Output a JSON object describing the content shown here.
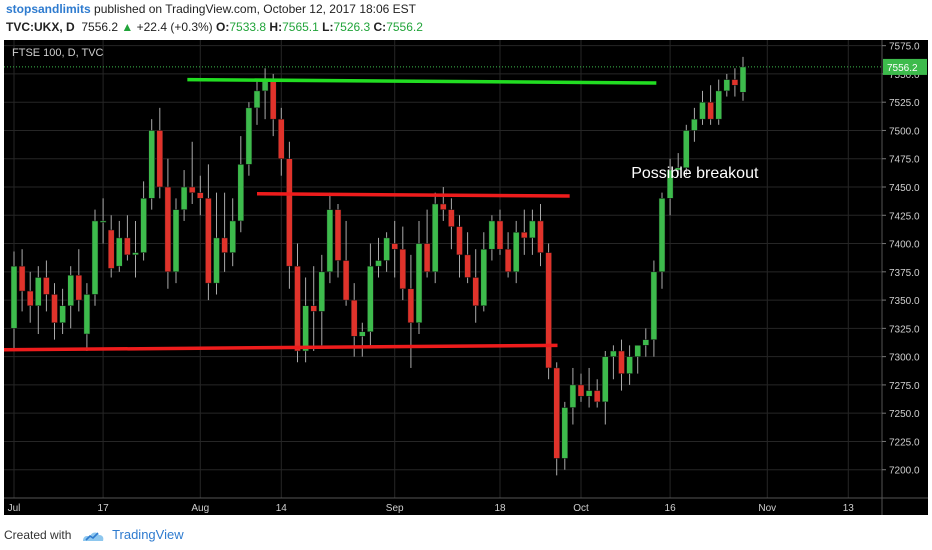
{
  "header": {
    "author": "stopsandlimits",
    "published_text": "published on TradingView.com, October 12, 2017 18:06 EST",
    "symbol": "TVC:UKX, D",
    "last": "7556.2",
    "change": "+22.4 (+0.3%)",
    "o_label": "O:",
    "o_value": "7533.8",
    "h_label": "H:",
    "h_value": "7565.1",
    "l_label": "L:",
    "l_value": "7526.3",
    "c_label": "C:",
    "c_value": "7556.2"
  },
  "chart_data": {
    "type": "candlestick",
    "title": "FTSE 100, D, TVC",
    "ylim": [
      7175,
      7580
    ],
    "y_ticks": [
      "7200.0",
      "7225.0",
      "7250.0",
      "7275.0",
      "7300.0",
      "7325.0",
      "7350.0",
      "7375.0",
      "7400.0",
      "7425.0",
      "7450.0",
      "7475.0",
      "7500.0",
      "7525.0",
      "7550.0",
      "7575.0"
    ],
    "x_ticks": [
      {
        "label": "Jul",
        "i": 0
      },
      {
        "label": "17",
        "i": 11
      },
      {
        "label": "Aug",
        "i": 23
      },
      {
        "label": "14",
        "i": 33
      },
      {
        "label": "Sep",
        "i": 47
      },
      {
        "label": "18",
        "i": 60
      },
      {
        "label": "Oct",
        "i": 70
      },
      {
        "label": "16",
        "i": 81
      },
      {
        "label": "Nov",
        "i": 93
      },
      {
        "label": "13",
        "i": 103
      }
    ],
    "last_price": "7556.2",
    "annotation": "Possible breakout",
    "candles": [
      {
        "o": 7325,
        "h": 7393,
        "l": 7305,
        "c": 7380
      },
      {
        "o": 7380,
        "h": 7395,
        "l": 7340,
        "c": 7358
      },
      {
        "o": 7358,
        "h": 7375,
        "l": 7330,
        "c": 7345
      },
      {
        "o": 7345,
        "h": 7380,
        "l": 7320,
        "c": 7370
      },
      {
        "o": 7370,
        "h": 7385,
        "l": 7340,
        "c": 7355
      },
      {
        "o": 7355,
        "h": 7365,
        "l": 7315,
        "c": 7330
      },
      {
        "o": 7330,
        "h": 7360,
        "l": 7320,
        "c": 7345
      },
      {
        "o": 7345,
        "h": 7380,
        "l": 7325,
        "c": 7372
      },
      {
        "o": 7372,
        "h": 7395,
        "l": 7340,
        "c": 7350
      },
      {
        "o": 7320,
        "h": 7365,
        "l": 7305,
        "c": 7355
      },
      {
        "o": 7355,
        "h": 7430,
        "l": 7345,
        "c": 7420
      },
      {
        "o": 7420,
        "h": 7440,
        "l": 7400,
        "c": 7420
      },
      {
        "o": 7412,
        "h": 7425,
        "l": 7370,
        "c": 7378
      },
      {
        "o": 7380,
        "h": 7420,
        "l": 7375,
        "c": 7405
      },
      {
        "o": 7405,
        "h": 7425,
        "l": 7385,
        "c": 7390
      },
      {
        "o": 7390,
        "h": 7420,
        "l": 7370,
        "c": 7392
      },
      {
        "o": 7392,
        "h": 7455,
        "l": 7385,
        "c": 7440
      },
      {
        "o": 7440,
        "h": 7510,
        "l": 7430,
        "c": 7500
      },
      {
        "o": 7500,
        "h": 7520,
        "l": 7440,
        "c": 7450
      },
      {
        "o": 7450,
        "h": 7475,
        "l": 7360,
        "c": 7375
      },
      {
        "o": 7375,
        "h": 7440,
        "l": 7365,
        "c": 7430
      },
      {
        "o": 7430,
        "h": 7465,
        "l": 7420,
        "c": 7450
      },
      {
        "o": 7450,
        "h": 7490,
        "l": 7435,
        "c": 7445
      },
      {
        "o": 7445,
        "h": 7460,
        "l": 7425,
        "c": 7440
      },
      {
        "o": 7440,
        "h": 7470,
        "l": 7350,
        "c": 7365
      },
      {
        "o": 7365,
        "h": 7445,
        "l": 7355,
        "c": 7405
      },
      {
        "o": 7405,
        "h": 7445,
        "l": 7375,
        "c": 7392
      },
      {
        "o": 7392,
        "h": 7440,
        "l": 7380,
        "c": 7420
      },
      {
        "o": 7420,
        "h": 7495,
        "l": 7410,
        "c": 7470
      },
      {
        "o": 7470,
        "h": 7525,
        "l": 7460,
        "c": 7520
      },
      {
        "o": 7520,
        "h": 7545,
        "l": 7505,
        "c": 7535
      },
      {
        "o": 7535,
        "h": 7555,
        "l": 7510,
        "c": 7545
      },
      {
        "o": 7545,
        "h": 7550,
        "l": 7495,
        "c": 7510
      },
      {
        "o": 7510,
        "h": 7520,
        "l": 7460,
        "c": 7475
      },
      {
        "o": 7475,
        "h": 7490,
        "l": 7360,
        "c": 7380
      },
      {
        "o": 7380,
        "h": 7400,
        "l": 7295,
        "c": 7305
      },
      {
        "o": 7305,
        "h": 7370,
        "l": 7295,
        "c": 7345
      },
      {
        "o": 7345,
        "h": 7380,
        "l": 7305,
        "c": 7340
      },
      {
        "o": 7340,
        "h": 7390,
        "l": 7310,
        "c": 7375
      },
      {
        "o": 7375,
        "h": 7445,
        "l": 7365,
        "c": 7430
      },
      {
        "o": 7430,
        "h": 7435,
        "l": 7370,
        "c": 7385
      },
      {
        "o": 7385,
        "h": 7420,
        "l": 7345,
        "c": 7350
      },
      {
        "o": 7350,
        "h": 7365,
        "l": 7300,
        "c": 7318
      },
      {
        "o": 7318,
        "h": 7330,
        "l": 7300,
        "c": 7322
      },
      {
        "o": 7322,
        "h": 7400,
        "l": 7310,
        "c": 7380
      },
      {
        "o": 7380,
        "h": 7405,
        "l": 7370,
        "c": 7385
      },
      {
        "o": 7385,
        "h": 7410,
        "l": 7375,
        "c": 7405
      },
      {
        "o": 7400,
        "h": 7420,
        "l": 7370,
        "c": 7395
      },
      {
        "o": 7395,
        "h": 7415,
        "l": 7350,
        "c": 7360
      },
      {
        "o": 7360,
        "h": 7390,
        "l": 7290,
        "c": 7330
      },
      {
        "o": 7330,
        "h": 7420,
        "l": 7320,
        "c": 7400
      },
      {
        "o": 7400,
        "h": 7430,
        "l": 7370,
        "c": 7375
      },
      {
        "o": 7375,
        "h": 7445,
        "l": 7365,
        "c": 7435
      },
      {
        "o": 7435,
        "h": 7450,
        "l": 7420,
        "c": 7430
      },
      {
        "o": 7430,
        "h": 7440,
        "l": 7395,
        "c": 7415
      },
      {
        "o": 7415,
        "h": 7425,
        "l": 7370,
        "c": 7390
      },
      {
        "o": 7390,
        "h": 7410,
        "l": 7365,
        "c": 7370
      },
      {
        "o": 7370,
        "h": 7395,
        "l": 7330,
        "c": 7345
      },
      {
        "o": 7345,
        "h": 7410,
        "l": 7340,
        "c": 7395
      },
      {
        "o": 7395,
        "h": 7425,
        "l": 7385,
        "c": 7420
      },
      {
        "o": 7420,
        "h": 7430,
        "l": 7390,
        "c": 7395
      },
      {
        "o": 7395,
        "h": 7410,
        "l": 7370,
        "c": 7375
      },
      {
        "o": 7375,
        "h": 7420,
        "l": 7365,
        "c": 7410
      },
      {
        "o": 7410,
        "h": 7430,
        "l": 7390,
        "c": 7405
      },
      {
        "o": 7405,
        "h": 7430,
        "l": 7390,
        "c": 7420
      },
      {
        "o": 7420,
        "h": 7435,
        "l": 7380,
        "c": 7392
      },
      {
        "o": 7392,
        "h": 7400,
        "l": 7280,
        "c": 7290
      },
      {
        "o": 7290,
        "h": 7295,
        "l": 7195,
        "c": 7210
      },
      {
        "o": 7210,
        "h": 7260,
        "l": 7200,
        "c": 7255
      },
      {
        "o": 7255,
        "h": 7290,
        "l": 7240,
        "c": 7275
      },
      {
        "o": 7275,
        "h": 7285,
        "l": 7260,
        "c": 7265
      },
      {
        "o": 7265,
        "h": 7290,
        "l": 7255,
        "c": 7270
      },
      {
        "o": 7270,
        "h": 7280,
        "l": 7255,
        "c": 7260
      },
      {
        "o": 7260,
        "h": 7305,
        "l": 7240,
        "c": 7300
      },
      {
        "o": 7300,
        "h": 7310,
        "l": 7280,
        "c": 7305
      },
      {
        "o": 7305,
        "h": 7315,
        "l": 7270,
        "c": 7285
      },
      {
        "o": 7285,
        "h": 7310,
        "l": 7275,
        "c": 7300
      },
      {
        "o": 7300,
        "h": 7310,
        "l": 7285,
        "c": 7310
      },
      {
        "o": 7310,
        "h": 7325,
        "l": 7300,
        "c": 7315
      },
      {
        "o": 7315,
        "h": 7385,
        "l": 7300,
        "c": 7375
      },
      {
        "o": 7375,
        "h": 7445,
        "l": 7360,
        "c": 7440
      },
      {
        "o": 7440,
        "h": 7475,
        "l": 7425,
        "c": 7465
      },
      {
        "o": 7465,
        "h": 7480,
        "l": 7460,
        "c": 7467
      },
      {
        "o": 7467,
        "h": 7505,
        "l": 7460,
        "c": 7500
      },
      {
        "o": 7500,
        "h": 7520,
        "l": 7490,
        "c": 7510
      },
      {
        "o": 7510,
        "h": 7535,
        "l": 7505,
        "c": 7525
      },
      {
        "o": 7525,
        "h": 7540,
        "l": 7505,
        "c": 7510
      },
      {
        "o": 7510,
        "h": 7545,
        "l": 7505,
        "c": 7535
      },
      {
        "o": 7535,
        "h": 7550,
        "l": 7530,
        "c": 7545
      },
      {
        "o": 7545,
        "h": 7555,
        "l": 7530,
        "c": 7540
      },
      {
        "o": 7533.8,
        "h": 7565.1,
        "l": 7526.3,
        "c": 7556.2
      }
    ],
    "trend_lines": [
      {
        "color": "#22dd22",
        "x1": 21.4,
        "y1": 7545,
        "x2": 79.3,
        "y2": 7542
      },
      {
        "color": "#ee1c1c",
        "x1": 30,
        "y1": 7444,
        "x2": 68.6,
        "y2": 7442
      },
      {
        "color": "#ee1c1c",
        "x1": -2,
        "y1": 7306,
        "x2": 67.1,
        "y2": 7310
      }
    ],
    "colors": {
      "up": "#3dbb4c",
      "down": "#e0332b",
      "background": "#000000",
      "grid": "#262626",
      "axis_text": "#cfcfcf",
      "last_price_bg": "#3dbb4c"
    }
  },
  "footer": {
    "created_with": "Created with",
    "brand": "TradingView"
  }
}
